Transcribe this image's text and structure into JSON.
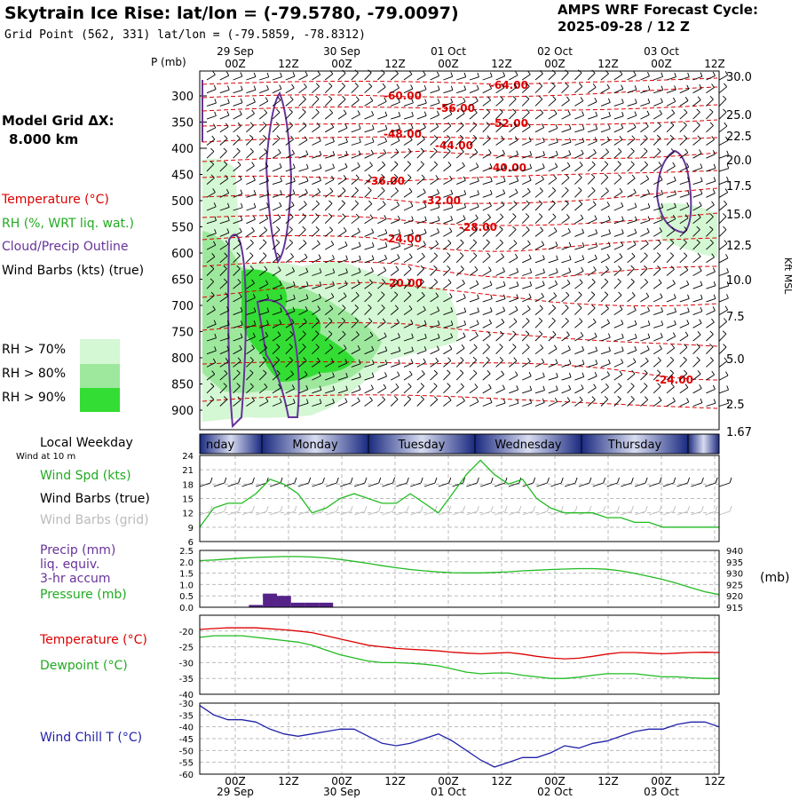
{
  "header": {
    "title": "Skytrain Ice Rise:  lat/lon = (-79.5780, -79.0097)",
    "grid_point": "Grid Point (562, 331) lat/lon = (-79.5859, -78.8312)",
    "cycle_title": "AMPS WRF Forecast Cycle:",
    "cycle_value": "2025-09-28 / 12  Z"
  },
  "legend_left": {
    "model_grid_label": "Model Grid ΔX:",
    "model_grid_value": "8.000 km",
    "temperature": "Temperature (°C)",
    "rh": "RH (%, WRT liq. wat.)",
    "cloud": "Cloud/Precip Outline",
    "wind_barbs": "Wind Barbs (kts) (true)",
    "rh70": "RH > 70%",
    "rh80": "RH > 80%",
    "rh90": "RH > 90%",
    "colors": {
      "rh70": "#d4f7d4",
      "rh80": "#9ee89e",
      "rh90": "#33dd33",
      "temp": "#dd0000",
      "cloud": "#663399"
    }
  },
  "time_axis": {
    "ticks": [
      "00Z",
      "12Z",
      "00Z",
      "12Z",
      "00Z",
      "12Z",
      "00Z",
      "12Z",
      "00Z",
      "12Z"
    ],
    "dates": [
      "29 Sep",
      "30 Sep",
      "01 Oct",
      "02 Oct",
      "03 Oct"
    ],
    "weekdays": [
      "nday",
      "Monday",
      "Tuesday",
      "Wednesday",
      "Thursday"
    ],
    "weekday_label": "Local Weekday"
  },
  "chart_data": [
    {
      "type": "cross-section",
      "ylabel": "P (mb)",
      "y_ticks": [
        "300",
        "350",
        "400",
        "450",
        "500",
        "550",
        "600",
        "650",
        "700",
        "750",
        "800",
        "850",
        "900"
      ],
      "right_ticks": [
        "30.0",
        "25.0",
        "22.5",
        "20.0",
        "17.5",
        "15.0",
        "12.5",
        "10.0",
        "7.5",
        "5.0",
        "2.5",
        "1.67"
      ],
      "right_label": "Kft MSL",
      "temperature_contours_c": [
        "-64.00",
        "-60.00",
        "-56.00",
        "-52.00",
        "-48.00",
        "-44.00",
        "-40.00",
        "-36.00",
        "-32.00",
        "-28.00",
        "-24.00",
        "-20.00",
        "-24.00"
      ]
    },
    {
      "type": "line",
      "title": "Wind at 10 m",
      "series": [
        {
          "name": "Wind Spd (kts)",
          "values": [
            9,
            13,
            14,
            14,
            16,
            19,
            18,
            16,
            12,
            13,
            15,
            16,
            15,
            14,
            14,
            16,
            14,
            12,
            16,
            20,
            23,
            20,
            18,
            19,
            15,
            13,
            12,
            12,
            12,
            11,
            11,
            10,
            10,
            9,
            9,
            9,
            9,
            9
          ]
        }
      ],
      "legend": [
        "Wind Spd (kts)",
        "Wind Barbs (true)",
        "Wind Barbs (grid)"
      ],
      "y_ticks": [
        "24",
        "21",
        "18",
        "15",
        "12",
        "9",
        "6"
      ],
      "ylim": [
        6,
        24
      ]
    },
    {
      "type": "bar+line",
      "legend": [
        "Precip (mm)",
        "liq. equiv.",
        "3-hr accum",
        "Pressure (mb)"
      ],
      "precip_mm": [
        0,
        0,
        0,
        0,
        0.1,
        0.6,
        0.5,
        0.2,
        0.2,
        0.2,
        0,
        0,
        0,
        0,
        0,
        0,
        0,
        0,
        0,
        0,
        0,
        0,
        0,
        0,
        0,
        0,
        0,
        0,
        0,
        0,
        0,
        0,
        0,
        0,
        0,
        0,
        0,
        0
      ],
      "pressure_mb": [
        935.5,
        935.8,
        936.2,
        936.6,
        936.9,
        937.1,
        937.3,
        937.3,
        937.1,
        936.7,
        936.0,
        935.2,
        934.3,
        933.3,
        932.4,
        931.6,
        931.0,
        930.5,
        930.2,
        930.1,
        930.1,
        930.3,
        930.6,
        931.0,
        931.3,
        931.6,
        931.8,
        932.0,
        932.0,
        931.7,
        931.0,
        929.9,
        928.6,
        927.2,
        925.5,
        923.6,
        921.8,
        920.6
      ],
      "y_ticks_left": [
        "2.5",
        "2.0",
        "1.5",
        "1.0",
        "0.5",
        "0.0"
      ],
      "y_ticks_right": [
        "940",
        "935",
        "930",
        "925",
        "920",
        "915"
      ],
      "unit_right": "(mb)"
    },
    {
      "type": "line",
      "series": [
        {
          "name": "Temperature (°C)",
          "values": [
            -19.5,
            -19.2,
            -19.0,
            -19.0,
            -19.0,
            -19.3,
            -19.6,
            -20.0,
            -20.5,
            -21.5,
            -22.5,
            -23.5,
            -24.5,
            -25.0,
            -25.5,
            -25.8,
            -26.0,
            -26.3,
            -26.7,
            -27.0,
            -27.2,
            -27.0,
            -26.8,
            -27.3,
            -28.0,
            -28.5,
            -28.8,
            -28.6,
            -28.0,
            -27.3,
            -26.8,
            -26.8,
            -27.0,
            -27.2,
            -27.0,
            -26.8,
            -26.7,
            -26.8
          ]
        },
        {
          "name": "Dewpoint (°C)",
          "values": [
            -22.0,
            -21.5,
            -21.5,
            -21.5,
            -22.0,
            -22.5,
            -23.0,
            -23.5,
            -24.5,
            -26.0,
            -27.5,
            -28.5,
            -29.5,
            -30.0,
            -30.0,
            -30.2,
            -30.5,
            -31.0,
            -32.0,
            -33.0,
            -33.5,
            -33.3,
            -33.3,
            -34.0,
            -34.5,
            -35.0,
            -35.0,
            -34.6,
            -34.0,
            -33.5,
            -33.5,
            -33.5,
            -34.0,
            -34.5,
            -34.5,
            -34.8,
            -35.0,
            -35.0
          ]
        }
      ],
      "y_ticks": [
        "-20",
        "-25",
        "-30",
        "-35",
        "-40"
      ],
      "ylim": [
        -40,
        -15
      ]
    },
    {
      "type": "line",
      "series": [
        {
          "name": "Wind Chill T (°C)",
          "values": [
            -31,
            -35,
            -37,
            -37,
            -38,
            -41,
            -43,
            -44,
            -43,
            -42,
            -41,
            -41,
            -44,
            -47,
            -48,
            -47,
            -45,
            -43,
            -46,
            -50,
            -54,
            -57,
            -55,
            -53,
            -53,
            -51,
            -48,
            -49,
            -47,
            -46,
            -44,
            -42,
            -41,
            -41,
            -39,
            -38,
            -38,
            -40
          ]
        }
      ],
      "y_ticks": [
        "-30",
        "-35",
        "-40",
        "-45",
        "-50",
        "-55",
        "-60"
      ],
      "ylim": [
        -60,
        -30
      ]
    }
  ]
}
